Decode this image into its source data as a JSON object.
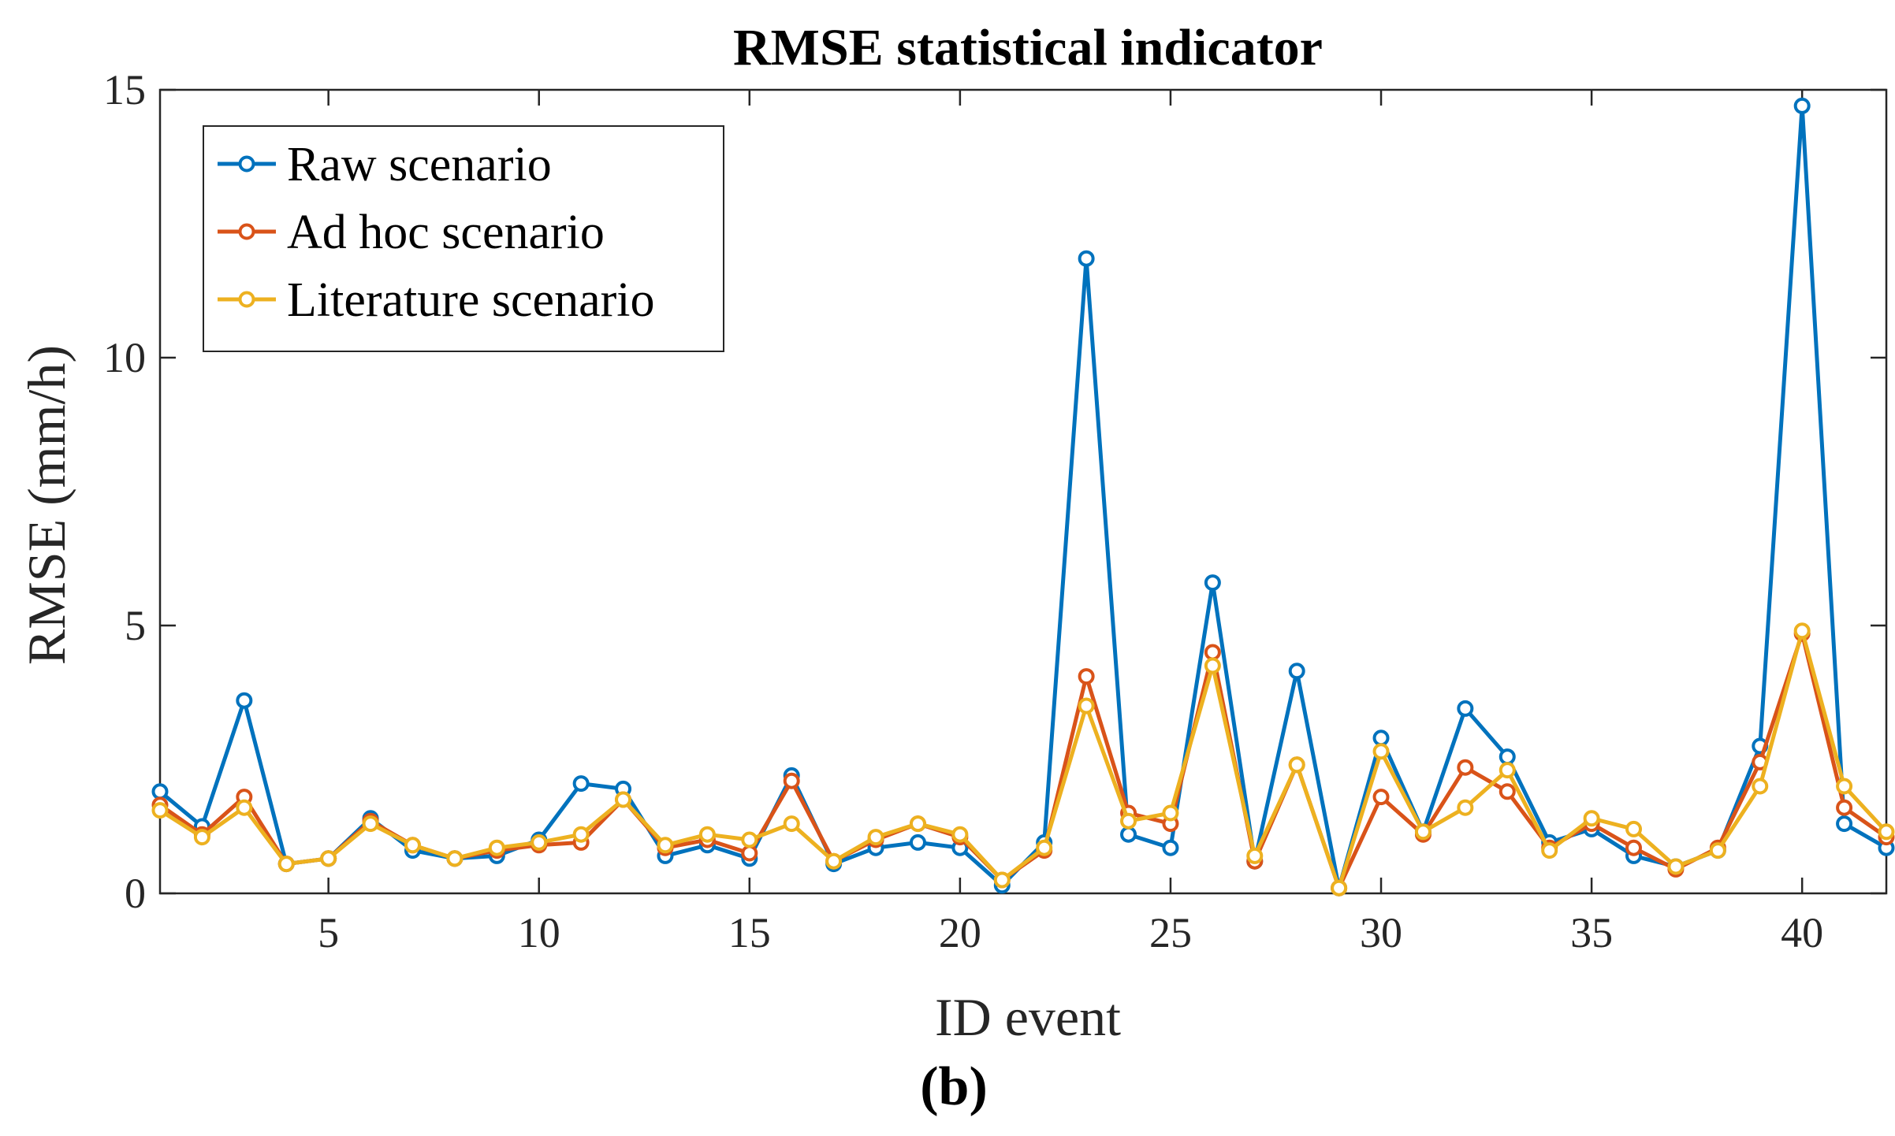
{
  "chart_data": {
    "type": "line",
    "title": "RMSE statistical indicator",
    "xlabel": "ID event",
    "ylabel": "RMSE (mm/h)",
    "panel_label": "(b)",
    "xlim": [
      1,
      42
    ],
    "ylim": [
      0,
      15
    ],
    "xticks": [
      5,
      10,
      15,
      20,
      25,
      30,
      35,
      40
    ],
    "yticks": [
      0,
      5,
      10,
      15
    ],
    "grid": false,
    "legend_position": "top-left",
    "x": [
      1,
      2,
      3,
      4,
      5,
      6,
      7,
      8,
      9,
      10,
      11,
      12,
      13,
      14,
      15,
      16,
      17,
      18,
      19,
      20,
      21,
      22,
      23,
      24,
      25,
      26,
      27,
      28,
      29,
      30,
      31,
      32,
      33,
      34,
      35,
      36,
      37,
      38,
      39,
      40,
      41,
      42
    ],
    "series": [
      {
        "name": "Raw scenario",
        "color": "#0072BD",
        "values": [
          1.9,
          1.25,
          3.6,
          0.55,
          0.65,
          1.4,
          0.8,
          0.65,
          0.7,
          1.0,
          2.05,
          1.95,
          0.7,
          0.9,
          0.65,
          2.2,
          0.55,
          0.85,
          0.95,
          0.85,
          0.15,
          0.95,
          11.85,
          1.1,
          0.85,
          5.8,
          0.6,
          4.15,
          0.1,
          2.9,
          1.15,
          3.45,
          2.55,
          0.95,
          1.2,
          0.7,
          0.5,
          0.8,
          2.75,
          14.7,
          1.3,
          0.85
        ]
      },
      {
        "name": "Ad hoc scenario",
        "color": "#D95319",
        "values": [
          1.65,
          1.1,
          1.8,
          0.55,
          0.65,
          1.35,
          0.9,
          0.65,
          0.8,
          0.9,
          0.95,
          1.75,
          0.85,
          1.0,
          0.75,
          2.1,
          0.6,
          1.0,
          1.3,
          1.05,
          0.25,
          0.8,
          4.05,
          1.5,
          1.3,
          4.5,
          0.6,
          2.4,
          0.1,
          1.8,
          1.1,
          2.35,
          1.9,
          0.85,
          1.3,
          0.85,
          0.45,
          0.85,
          2.45,
          4.85,
          1.6,
          1.05
        ]
      },
      {
        "name": "Literature scenario",
        "color": "#EDB120",
        "values": [
          1.55,
          1.05,
          1.6,
          0.55,
          0.65,
          1.3,
          0.9,
          0.65,
          0.85,
          0.95,
          1.1,
          1.75,
          0.9,
          1.1,
          1.0,
          1.3,
          0.6,
          1.05,
          1.3,
          1.1,
          0.25,
          0.85,
          3.5,
          1.35,
          1.5,
          4.25,
          0.7,
          2.4,
          0.1,
          2.65,
          1.15,
          1.6,
          2.3,
          0.8,
          1.4,
          1.2,
          0.5,
          0.8,
          2.0,
          4.9,
          2.0,
          1.15
        ]
      }
    ]
  }
}
